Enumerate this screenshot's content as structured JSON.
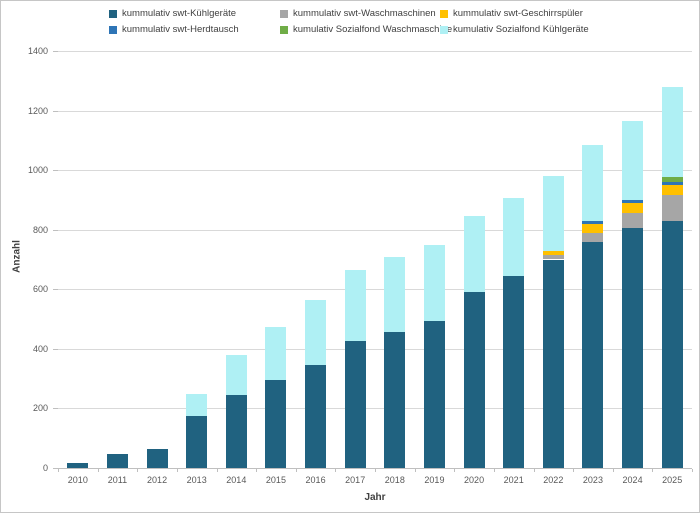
{
  "chart_data": {
    "type": "bar",
    "stacked": true,
    "title": "",
    "xlabel": "Jahr",
    "ylabel": "Anzahl",
    "ylim": [
      0,
      1400
    ],
    "yticks": [
      0,
      200,
      400,
      600,
      800,
      1000,
      1200,
      1400
    ],
    "grid": true,
    "legend_position": "top",
    "categories": [
      "2010",
      "2011",
      "2012",
      "2013",
      "2014",
      "2015",
      "2016",
      "2017",
      "2018",
      "2019",
      "2020",
      "2021",
      "2022",
      "2023",
      "2024",
      "2025"
    ],
    "series": [
      {
        "name": "kummulativ swt-Kühlgeräte",
        "color": "#206280",
        "values": [
          18,
          48,
          65,
          175,
          245,
          295,
          345,
          425,
          455,
          495,
          590,
          645,
          700,
          760,
          805,
          830
        ]
      },
      {
        "name": "kummulativ swt-Waschmaschinen",
        "color": "#a6a6a6",
        "values": [
          0,
          0,
          0,
          0,
          0,
          0,
          0,
          0,
          0,
          0,
          0,
          0,
          15,
          30,
          50,
          85
        ]
      },
      {
        "name": "kummulativ swt-Geschirrspüler",
        "color": "#ffc000",
        "values": [
          0,
          0,
          0,
          0,
          0,
          0,
          0,
          0,
          0,
          0,
          0,
          0,
          15,
          30,
          35,
          35
        ]
      },
      {
        "name": "kummulativ swt-Herdtausch",
        "color": "#2e75b6",
        "values": [
          0,
          0,
          0,
          0,
          0,
          0,
          0,
          0,
          0,
          0,
          0,
          0,
          0,
          8,
          10,
          10
        ]
      },
      {
        "name": "kumulativ Sozialfond Waschmaschine",
        "color": "#70ad47",
        "values": [
          0,
          0,
          0,
          0,
          0,
          0,
          0,
          0,
          0,
          0,
          0,
          0,
          0,
          0,
          0,
          18
        ]
      },
      {
        "name": "kumulativ Sozialfond Kühlgeräte",
        "color": "#aff0f4",
        "values": [
          0,
          0,
          0,
          75,
          135,
          180,
          220,
          240,
          255,
          255,
          255,
          260,
          250,
          255,
          265,
          300
        ]
      }
    ],
    "legend_rows": [
      [
        0,
        1,
        2
      ],
      [
        3,
        4,
        5
      ]
    ],
    "geometry_note": "stacking order bottom-to-top equals series order"
  }
}
